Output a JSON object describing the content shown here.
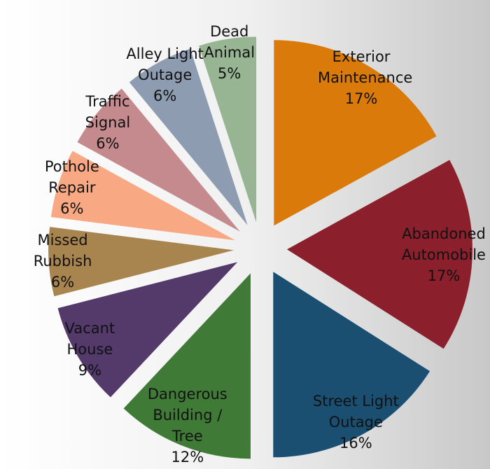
{
  "chart_data": {
    "type": "pie",
    "categories": [
      "Exterior Maintenance",
      "Abandoned Automobile",
      "Street Light Outage",
      "Dangerous Building / Tree",
      "Vacant House",
      "Missed Rubbish",
      "Pothole Repair",
      "Traffic Signal",
      "Alley Light Outage",
      "Dead Animal"
    ],
    "values": [
      17,
      17,
      16,
      12,
      9,
      6,
      6,
      6,
      6,
      5
    ],
    "value_labels": [
      "17%",
      "17%",
      "16%",
      "12%",
      "9%",
      "6%",
      "6%",
      "6%",
      "6%",
      "5%"
    ],
    "colors": [
      "#d97a0a",
      "#8b1f2c",
      "#1a4f72",
      "#3f7a37",
      "#533a6b",
      "#a8844f",
      "#f8a882",
      "#c48a8e",
      "#8d9cb0",
      "#97b593"
    ]
  }
}
